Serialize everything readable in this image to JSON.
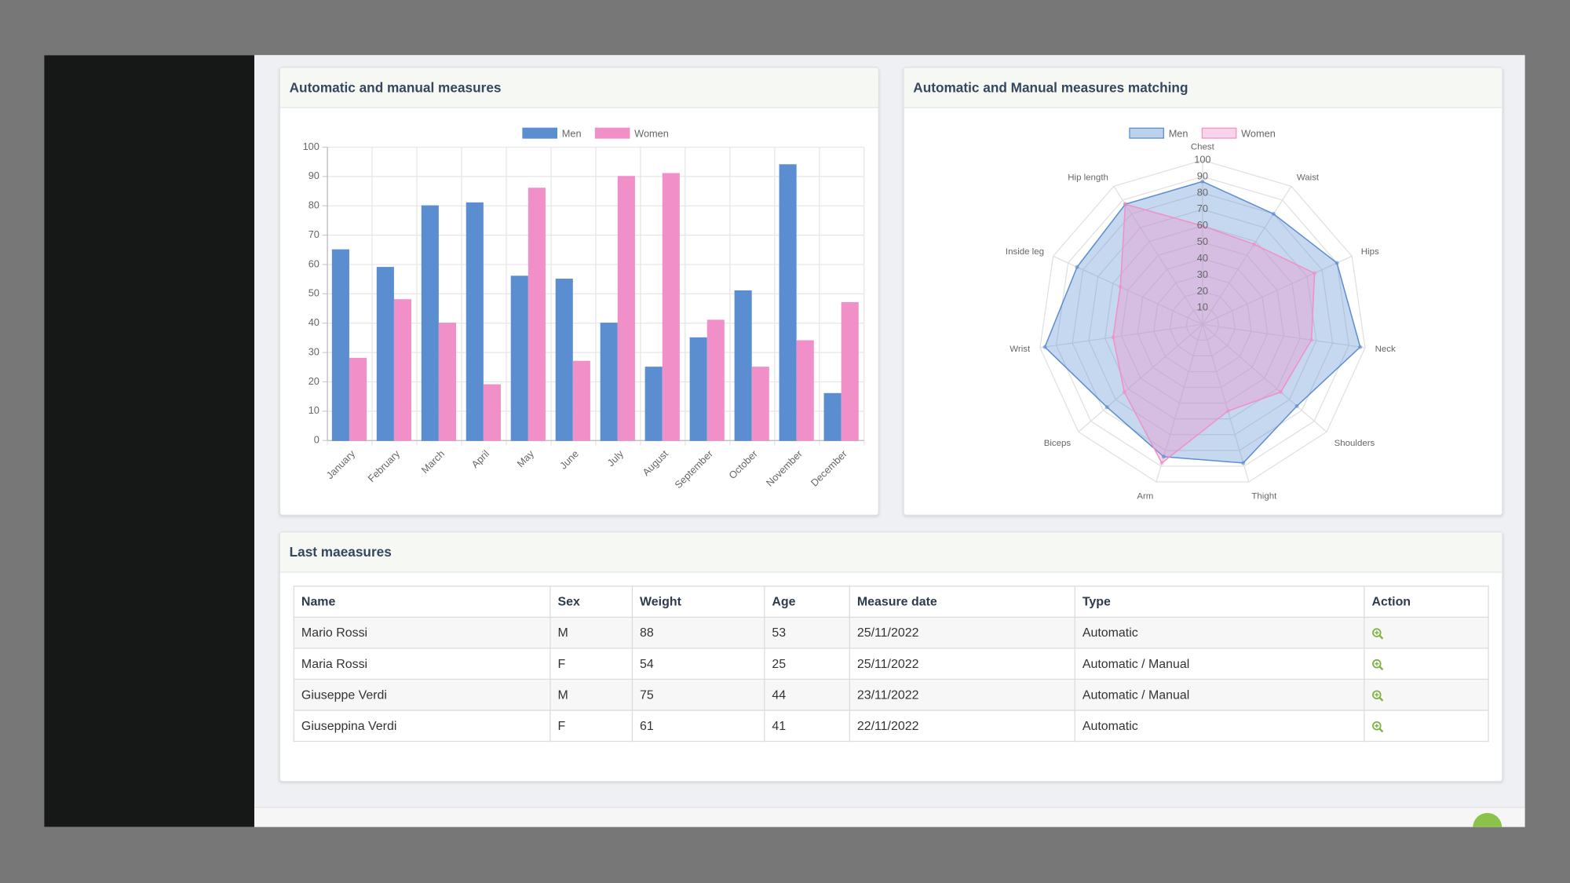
{
  "chart_data": [
    {
      "type": "bar",
      "title": "Automatic and manual measures",
      "categories": [
        "January",
        "February",
        "March",
        "April",
        "May",
        "June",
        "July",
        "August",
        "September",
        "October",
        "November",
        "December"
      ],
      "series": [
        {
          "name": "Men",
          "color": "#5b8ed0",
          "values": [
            65,
            59,
            80,
            81,
            56,
            55,
            40,
            25,
            35,
            51,
            94,
            16
          ]
        },
        {
          "name": "Women",
          "color": "#f190c8",
          "values": [
            28,
            48,
            40,
            19,
            86,
            27,
            90,
            91,
            41,
            25,
            34,
            47
          ]
        }
      ],
      "ylim": [
        0,
        100
      ],
      "yticks": [
        0,
        10,
        20,
        30,
        40,
        50,
        60,
        70,
        80,
        90,
        100
      ],
      "grid": true,
      "legend": "top"
    },
    {
      "type": "radar",
      "title": "Automatic and Manual measures matching",
      "categories": [
        "Chest",
        "Waist",
        "Hips",
        "Neck",
        "Shoulders",
        "Thight",
        "Arm",
        "Biceps",
        "Wrist",
        "Inside leg",
        "Hip length"
      ],
      "series": [
        {
          "name": "Men",
          "color": "#5b8ed0",
          "values": [
            87,
            80,
            90,
            97,
            76,
            88,
            84,
            77,
            97,
            84,
            87
          ]
        },
        {
          "name": "Women",
          "color": "#f190c8",
          "values": [
            60,
            58,
            75,
            67,
            63,
            55,
            88,
            63,
            55,
            55,
            87
          ]
        }
      ],
      "rlim": [
        0,
        100
      ],
      "rticks": [
        10,
        20,
        30,
        40,
        50,
        60,
        70,
        80,
        90,
        100
      ],
      "grid": true,
      "legend": "top"
    }
  ],
  "table": {
    "title": "Last maeasures",
    "columns": [
      "Name",
      "Sex",
      "Weight",
      "Age",
      "Measure date",
      "Type",
      "Action"
    ],
    "rows": [
      [
        "Mario Rossi",
        "M",
        88,
        53,
        "25/11/2022",
        "Automatic"
      ],
      [
        "Maria Rossi",
        "F",
        54,
        25,
        "25/11/2022",
        "Automatic / Manual"
      ],
      [
        "Giuseppe Verdi",
        "M",
        75,
        44,
        "23/11/2022",
        "Automatic / Manual"
      ],
      [
        "Giuseppina Verdi",
        "F",
        61,
        41,
        "22/11/2022",
        "Automatic"
      ]
    ]
  }
}
